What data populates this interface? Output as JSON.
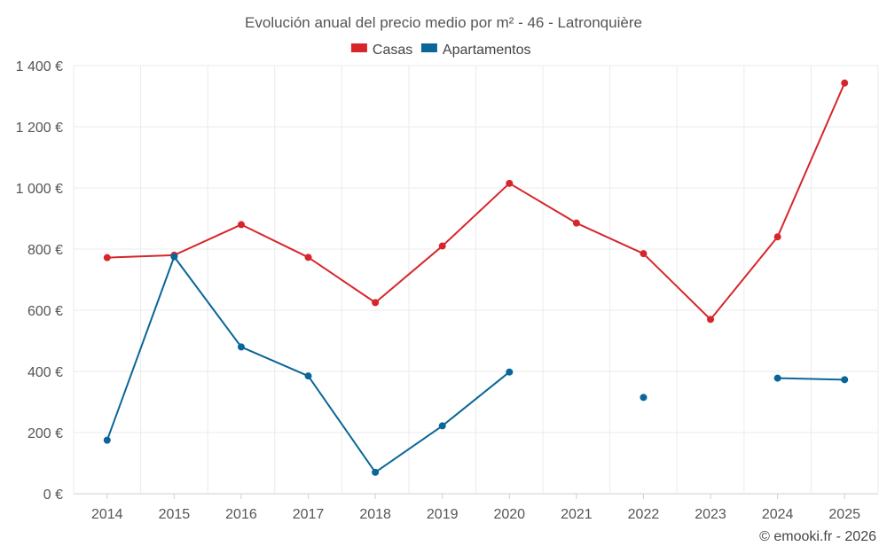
{
  "chart_data": {
    "type": "line",
    "title": "Evolución anual del precio medio por m² - 46 - Latronquière",
    "categories": [
      "2014",
      "2015",
      "2016",
      "2017",
      "2018",
      "2019",
      "2020",
      "2021",
      "2022",
      "2023",
      "2024",
      "2025"
    ],
    "series": [
      {
        "name": "Casas",
        "color": "#d7262b",
        "values": [
          772,
          780,
          880,
          773,
          625,
          810,
          1015,
          885,
          785,
          570,
          840,
          1343
        ]
      },
      {
        "name": "Apartamentos",
        "color": "#0a6698",
        "values": [
          175,
          775,
          480,
          385,
          70,
          222,
          398,
          null,
          315,
          null,
          378,
          373
        ]
      }
    ],
    "ylim": [
      0,
      1400
    ],
    "yticks": [
      0,
      200,
      400,
      600,
      800,
      1000,
      1200,
      1400
    ],
    "ytick_labels": [
      "0 €",
      "200 €",
      "400 €",
      "600 €",
      "800 €",
      "1 000 €",
      "1 200 €",
      "1 400 €"
    ],
    "xlabel": "",
    "ylabel": "",
    "legend": "top-center",
    "grid": true
  },
  "footer": {
    "copyright": "© emooki.fr - 2026"
  }
}
